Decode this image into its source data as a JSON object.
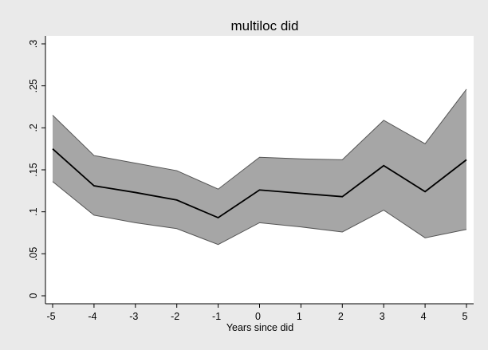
{
  "chart_data": {
    "type": "area",
    "title": "multiloc did",
    "xlabel": "Years since did",
    "ylabel": "",
    "x": [
      -5,
      -4,
      -3,
      -2,
      -1,
      0,
      1,
      2,
      3,
      4,
      5
    ],
    "xlim": [
      -5,
      5
    ],
    "ylim": [
      0,
      0.3
    ],
    "xticks": [
      -5,
      -4,
      -3,
      -2,
      -1,
      0,
      1,
      2,
      3,
      4,
      5
    ],
    "xtick_labels": [
      "-5",
      "-4",
      "-3",
      "-2",
      "-1",
      "0",
      "1",
      "2",
      "3",
      "4",
      "5"
    ],
    "yticks": [
      0,
      0.05,
      0.1,
      0.15,
      0.2,
      0.25,
      0.3
    ],
    "ytick_labels": [
      "0",
      ".05",
      ".1",
      ".15",
      ".2",
      ".25",
      ".3"
    ],
    "grid": false,
    "series": [
      {
        "role": "estimate",
        "values": [
          0.175,
          0.131,
          0.123,
          0.114,
          0.093,
          0.126,
          0.122,
          0.118,
          0.155,
          0.124,
          0.162
        ]
      },
      {
        "role": "upper",
        "values": [
          0.215,
          0.167,
          0.158,
          0.149,
          0.127,
          0.165,
          0.163,
          0.162,
          0.209,
          0.181,
          0.246
        ]
      },
      {
        "role": "lower",
        "values": [
          0.136,
          0.096,
          0.087,
          0.08,
          0.061,
          0.087,
          0.082,
          0.076,
          0.102,
          0.069,
          0.079
        ]
      }
    ],
    "colors": {
      "band_fill": "#a6a6a6",
      "band_edge": "#555555",
      "line": "#000000",
      "plot_bg": "#ffffff",
      "outer_bg": "#eaeaea"
    }
  }
}
